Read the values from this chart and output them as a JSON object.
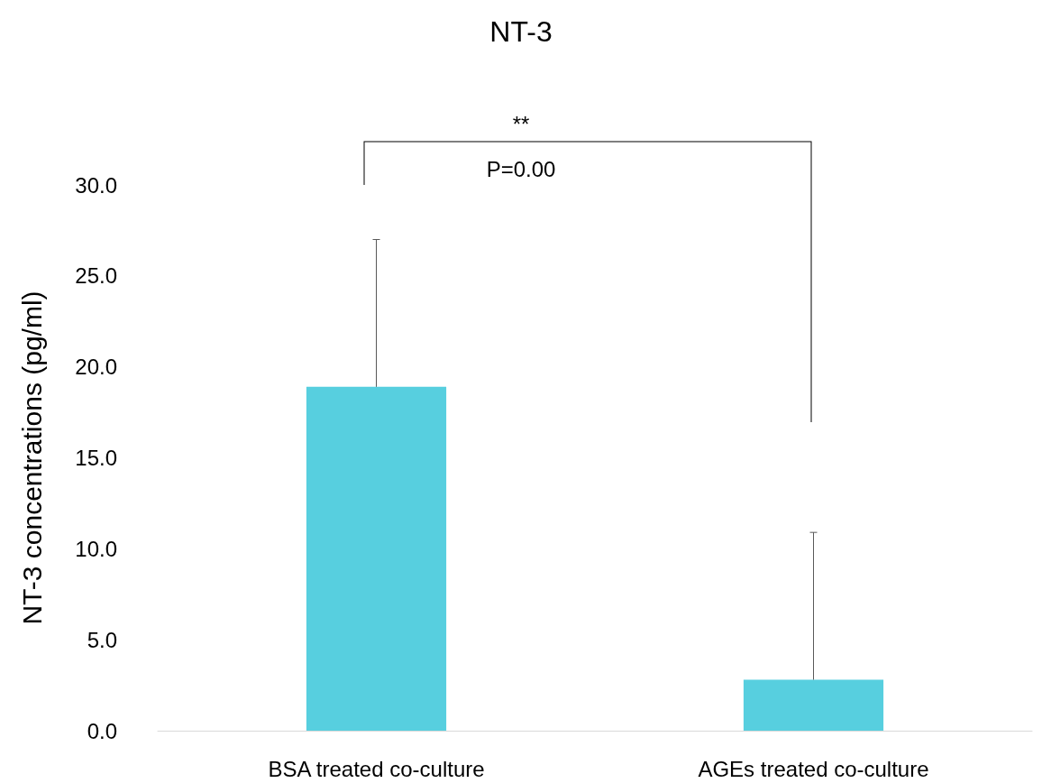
{
  "chart_data": {
    "type": "bar",
    "title": "NT-3",
    "ylabel": "NT-3 concentrations (pg/ml)",
    "categories": [
      "BSA treated co-culture",
      "AGEs treated co-culture"
    ],
    "values": [
      18.9,
      2.8
    ],
    "color": "#57cfdf",
    "errors": [
      [
        18.9,
        27.0
      ],
      [
        2.8,
        10.9
      ]
    ],
    "ylim": [
      0,
      30
    ],
    "yticks": [
      {
        "value": 0,
        "label": "0.0"
      },
      {
        "value": 5,
        "label": "5.0"
      },
      {
        "value": 10,
        "label": "10.0"
      },
      {
        "value": 15,
        "label": "15.0"
      },
      {
        "value": 20,
        "label": "20.0"
      },
      {
        "value": 25,
        "label": "25.0"
      },
      {
        "value": 30,
        "label": "30.0"
      }
    ],
    "grid": false,
    "annotations": [
      "**",
      "P=0.00"
    ]
  }
}
